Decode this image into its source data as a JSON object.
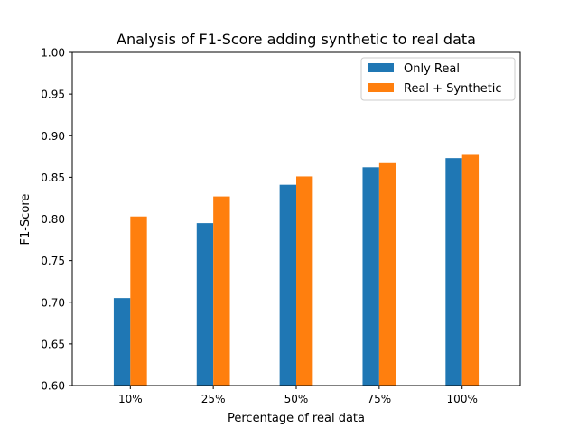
{
  "chart_data": {
    "type": "bar",
    "title": "Analysis of F1-Score adding synthetic to real data",
    "xlabel": "Percentage of real data",
    "ylabel": "F1-Score",
    "categories": [
      "10%",
      "25%",
      "50%",
      "75%",
      "100%"
    ],
    "ylim": [
      0.6,
      1.0
    ],
    "yticks": [
      "0.60",
      "0.65",
      "0.70",
      "0.75",
      "0.80",
      "0.85",
      "0.90",
      "0.95",
      "1.00"
    ],
    "grid": false,
    "legend_position": "top-right",
    "series": [
      {
        "name": "Only Real",
        "color": "#1f77b4",
        "values": [
          0.705,
          0.795,
          0.841,
          0.862,
          0.873
        ]
      },
      {
        "name": "Real + Synthetic",
        "color": "#ff7f0e",
        "values": [
          0.803,
          0.827,
          0.851,
          0.868,
          0.877
        ]
      }
    ]
  }
}
